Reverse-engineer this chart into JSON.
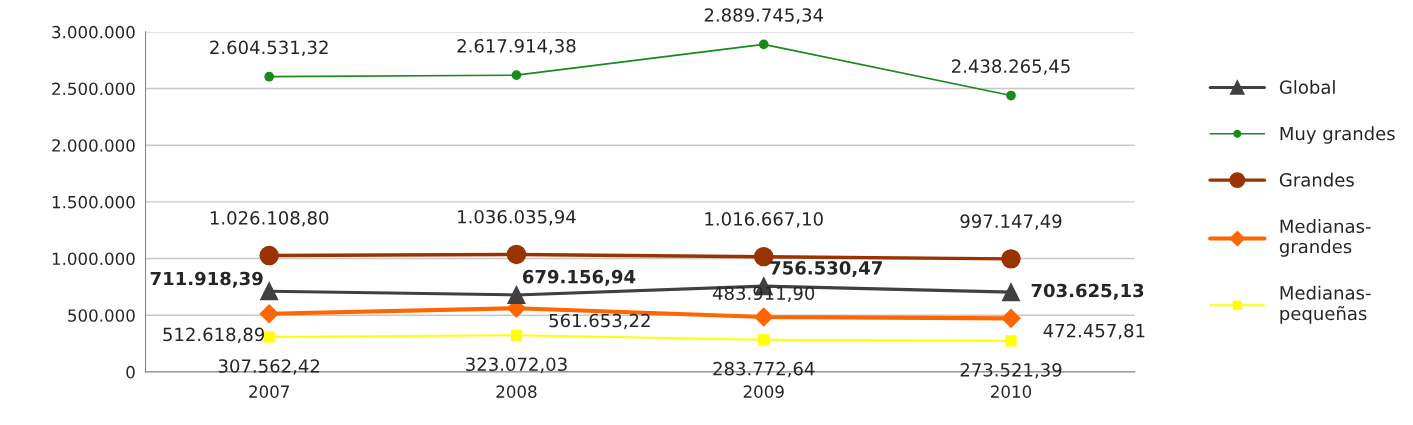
{
  "chart_data": {
    "type": "line",
    "categories": [
      "2007",
      "2008",
      "2009",
      "2010"
    ],
    "ylim": [
      0,
      3000000
    ],
    "yticks": [
      0,
      {
        "value": 500000,
        "label": "500.000"
      },
      {
        "value": 1000000,
        "label": "1.000.000"
      },
      {
        "value": 1500000,
        "label": "1.500.000"
      },
      {
        "value": 2000000,
        "label": "2.000.000"
      },
      {
        "value": 2500000,
        "label": "2.500.000"
      },
      {
        "value": 3000000,
        "label": "3.000.000"
      }
    ],
    "grid": "y",
    "legend": "right",
    "series": [
      {
        "name": "Global",
        "color": "#404040",
        "marker": "triangle",
        "values": [
          711918.39,
          679156.94,
          756530.47,
          703625.13
        ],
        "value_labels": [
          "711.918,39",
          "679.156,94",
          "756.530,47",
          "703.625,13"
        ]
      },
      {
        "name": "Muy grandes",
        "color": "#1a8a1a",
        "marker": "circle",
        "values": [
          2604531.32,
          2617914.38,
          2889745.34,
          2438265.45
        ],
        "value_labels": [
          "2.604.531,32",
          "2.617.914,38",
          "2.889.745,34",
          "2.438.265,45"
        ]
      },
      {
        "name": "Grandes",
        "color": "#993300",
        "marker": "circle",
        "values": [
          1026108.8,
          1036035.94,
          1016667.1,
          997147.49
        ],
        "value_labels": [
          "1.026.108,80",
          "1.036.035,94",
          "1.016.667,10",
          "997.147,49"
        ]
      },
      {
        "name": "Medianas-grandes",
        "color": "#ff6600",
        "marker": "diamond",
        "values": [
          512618.89,
          561653.22,
          483911.9,
          472457.81
        ],
        "value_labels": [
          "512.618,89",
          "561.653,22",
          "483.911,90",
          "472.457,81"
        ]
      },
      {
        "name": "Medianas-pequeñas",
        "color": "#ffff00",
        "marker": "square",
        "values": [
          307562.42,
          323072.03,
          283772.64,
          273521.39
        ],
        "value_labels": [
          "307.562,42",
          "323.072,03",
          "283.772,64",
          "273.521,39"
        ]
      }
    ]
  }
}
